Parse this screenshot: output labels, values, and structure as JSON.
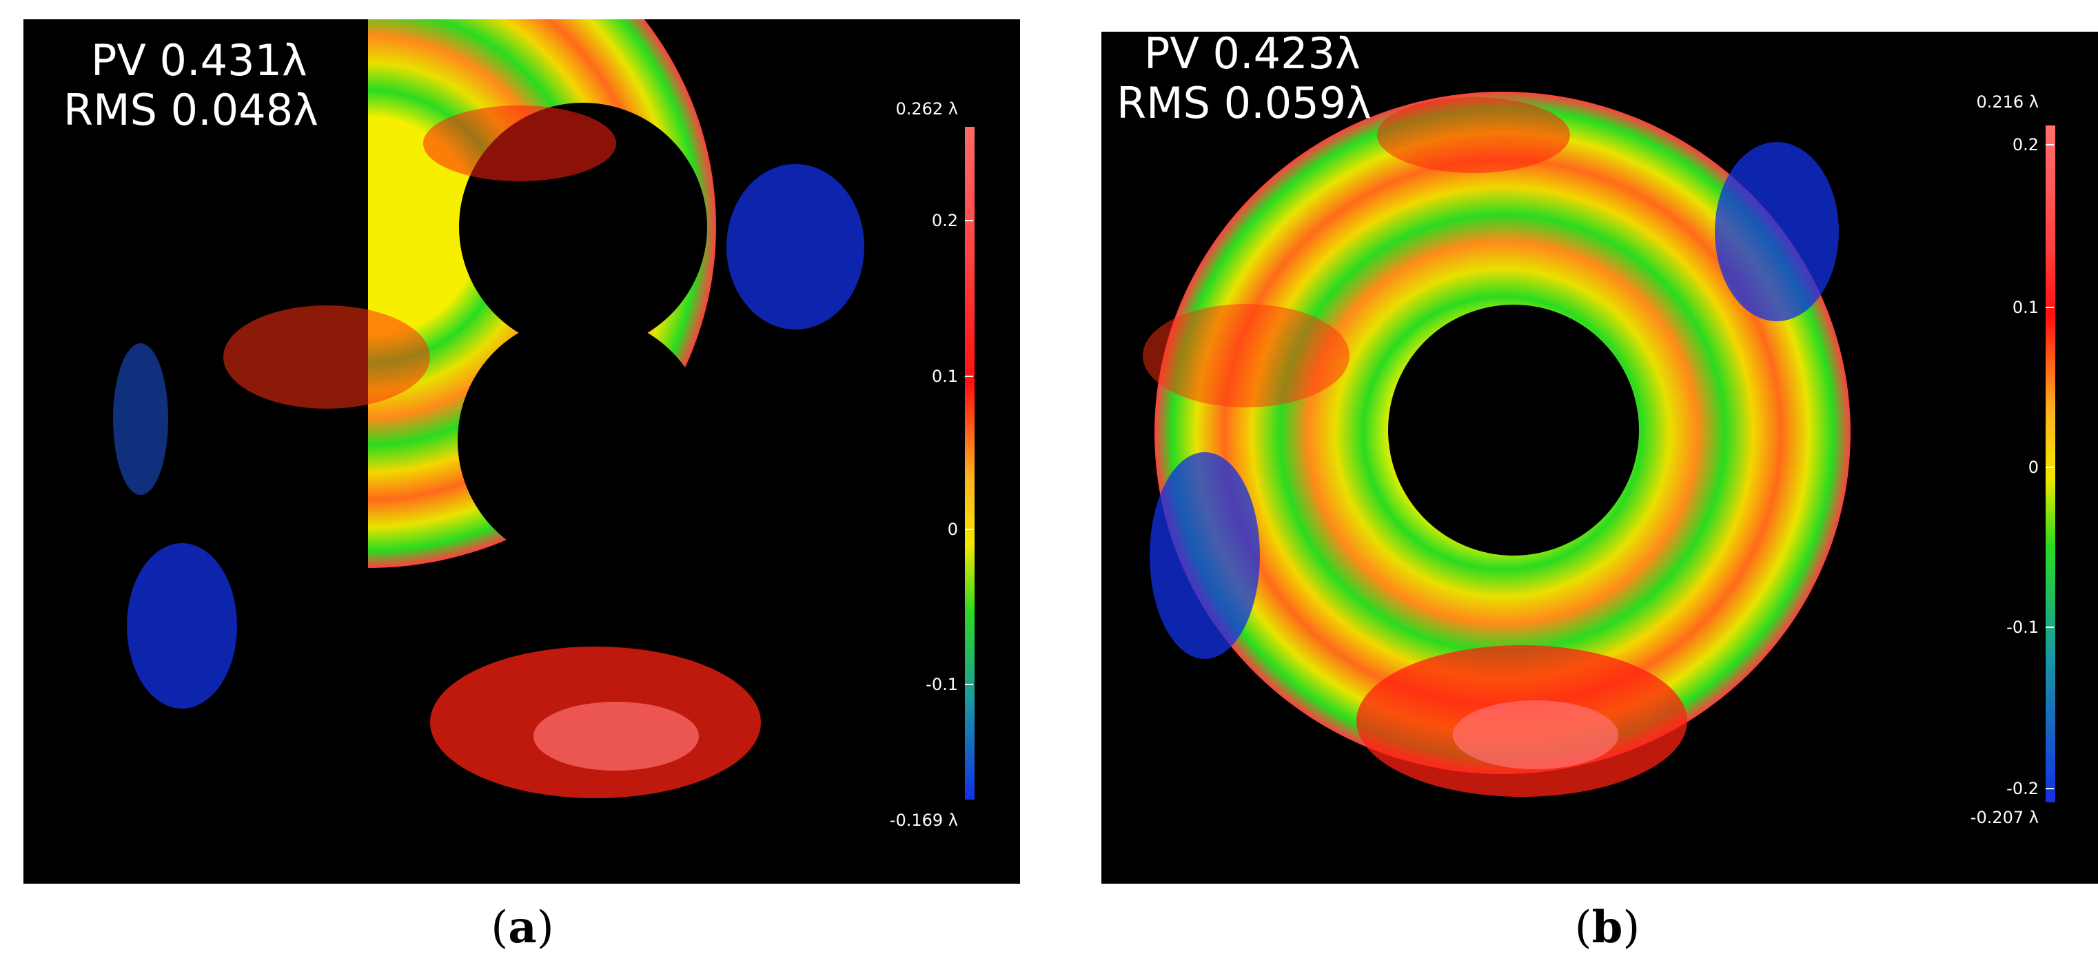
{
  "panels": [
    {
      "id": "a",
      "pv_label": "PV",
      "pv_value": "0.431λ",
      "rms_label": "RMS",
      "rms_value": "0.048λ",
      "scale_max": "0.262 λ",
      "scale_min": "-0.169 λ",
      "ticks": [
        "0.2",
        "0.1",
        "0",
        "-0.1"
      ],
      "caption_open": "(",
      "caption_letter": "a",
      "caption_close": ")"
    },
    {
      "id": "b",
      "pv_label": "PV",
      "pv_value": "0.423λ",
      "rms_label": "RMS",
      "rms_value": "0.059λ",
      "scale_max": "0.216 λ",
      "scale_min": "-0.207 λ",
      "ticks": [
        "0.2",
        "0.1",
        "0",
        "-0.1",
        "-0.2"
      ],
      "caption_open": "(",
      "caption_letter": "b",
      "caption_close": ")"
    }
  ],
  "colors": {
    "background": "#000000",
    "high": "#ff5050",
    "mid_high": "#ff9a1a",
    "zero": "#f4e800",
    "mid_low": "#2adb20",
    "low": "#1230e6"
  }
}
